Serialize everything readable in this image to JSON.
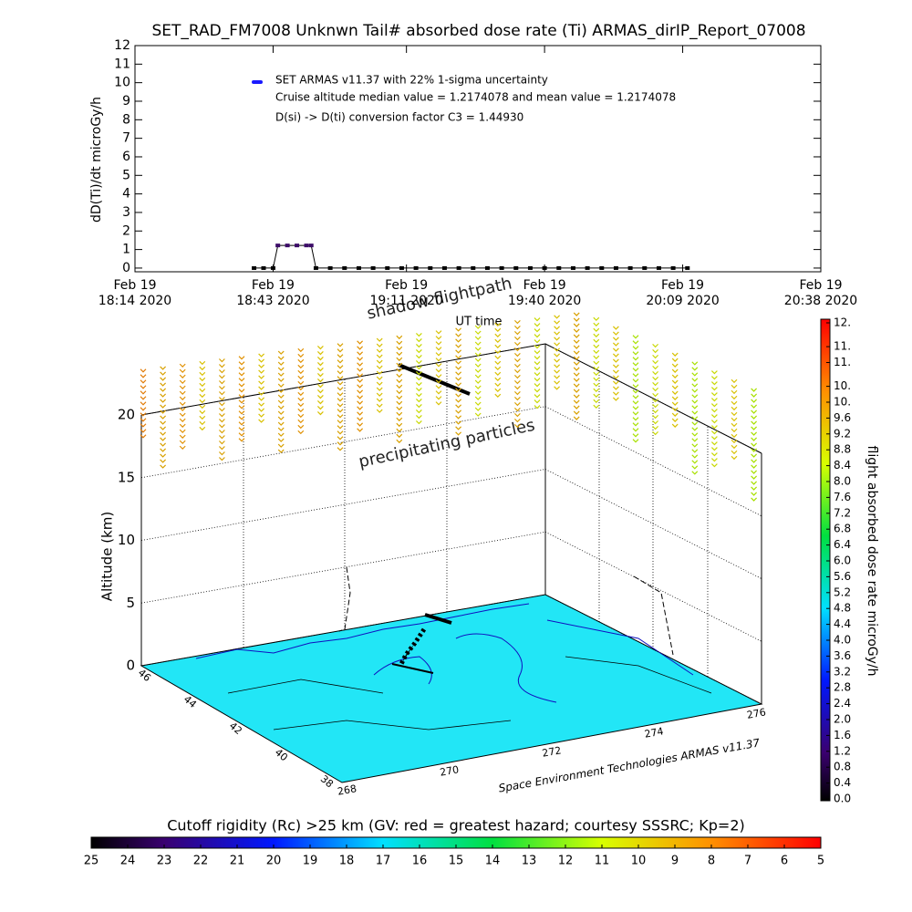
{
  "chart_data": [
    {
      "type": "line",
      "title": "SET_RAD_FM7008  Unknwn Tail#  absorbed dose rate (Ti) ARMAS_dirIP_Report_07008",
      "ylabel": "dD(Ti)/dt microGy/h",
      "xlabel": "UT time",
      "annotations": [
        "Cruise altitude median value = 1.2174078 and mean value = 1.2174078",
        "D(si) -> D(ti) conversion factor C3 = 1.44930"
      ],
      "xlim": [
        "2020-02-19T18:14",
        "2020-02-19T20:38"
      ],
      "xticks": [
        {
          "value": "2020-02-19T18:14",
          "label": [
            "Feb 19",
            "18:14 2020"
          ]
        },
        {
          "value": "2020-02-19T18:43",
          "label": [
            "Feb 19",
            "18:43 2020"
          ]
        },
        {
          "value": "2020-02-19T19:11",
          "label": [
            "Feb 19",
            "19:11 2020"
          ]
        },
        {
          "value": "2020-02-19T19:40",
          "label": [
            "Feb 19",
            "19:40 2020"
          ]
        },
        {
          "value": "2020-02-19T20:09",
          "label": [
            "Feb 19",
            "20:09 2020"
          ]
        },
        {
          "value": "2020-02-19T20:38",
          "label": [
            "Feb 19",
            "20:38 2020"
          ]
        }
      ],
      "ylim": [
        -0.2,
        12
      ],
      "yticks": [
        0,
        1,
        2,
        3,
        4,
        5,
        6,
        7,
        8,
        9,
        10,
        11,
        12
      ],
      "x": [
        "2020-02-19T18:39",
        "2020-02-19T18:41",
        "2020-02-19T18:43",
        "2020-02-19T18:44",
        "2020-02-19T18:46",
        "2020-02-19T18:48",
        "2020-02-19T18:50",
        "2020-02-19T18:51",
        "2020-02-19T18:52",
        "2020-02-19T18:55",
        "2020-02-19T18:58",
        "2020-02-19T19:01",
        "2020-02-19T19:04",
        "2020-02-19T19:07",
        "2020-02-19T19:10",
        "2020-02-19T19:13",
        "2020-02-19T19:16",
        "2020-02-19T19:19",
        "2020-02-19T19:22",
        "2020-02-19T19:25",
        "2020-02-19T19:28",
        "2020-02-19T19:31",
        "2020-02-19T19:34",
        "2020-02-19T19:37",
        "2020-02-19T19:40",
        "2020-02-19T19:43",
        "2020-02-19T19:46",
        "2020-02-19T19:49",
        "2020-02-19T19:52",
        "2020-02-19T19:55",
        "2020-02-19T19:58",
        "2020-02-19T20:01",
        "2020-02-19T20:04",
        "2020-02-19T20:07",
        "2020-02-19T20:10"
      ],
      "series": [
        {
          "name": "SET ARMAS v11.37 with 22% 1-sigma uncertainty",
          "color": "#1a1aff",
          "line_color": "#000000",
          "values": [
            0,
            0,
            0,
            1.22,
            1.22,
            1.22,
            1.22,
            1.22,
            0,
            0,
            0,
            0,
            0,
            0,
            0,
            0,
            0,
            0,
            0,
            0,
            0,
            0,
            0,
            0,
            0,
            0,
            0,
            0,
            0,
            0,
            0,
            0,
            0,
            0,
            0
          ]
        }
      ]
    },
    {
      "type": "surface3d",
      "annotations": [
        "shadow flightpath",
        "precipitating particles"
      ],
      "zlabel": "Altitude (km)",
      "zlim": [
        0,
        20
      ],
      "zticks": [
        0,
        5,
        10,
        15,
        20
      ],
      "lat_ticks": [
        46,
        44,
        42,
        40,
        38
      ],
      "lon_ticks": [
        268,
        270,
        272,
        274,
        276
      ],
      "credit": "Space Environment Technologies ARMAS v11.37"
    },
    {
      "type": "colorbar",
      "label": "flight absorbed dose rate microGy/h",
      "lim": [
        0,
        12
      ],
      "ticks": [
        {
          "value": 0,
          "label": "0.0"
        },
        0.4,
        0.8,
        1.2,
        1.6,
        {
          "value": 2,
          "label": "2.0"
        },
        2.4,
        2.8,
        3.2,
        3.6,
        {
          "value": 4,
          "label": "4.0"
        },
        4.4,
        4.8,
        5.2,
        5.6,
        {
          "value": 6,
          "label": "6.0"
        },
        6.4,
        6.8,
        7.2,
        7.6,
        {
          "value": 8,
          "label": "8.0"
        },
        8.4,
        8.8,
        9.2,
        9.6,
        {
          "value": 10,
          "label": "10."
        },
        {
          "value": 10.4,
          "label": "10."
        },
        {
          "value": 11,
          "label": "11."
        },
        {
          "value": 11.4,
          "label": "11."
        },
        {
          "value": 12,
          "label": "12."
        }
      ]
    },
    {
      "type": "colorbar",
      "label": "Cutoff rigidity (Rc) >25 km (GV: red = greatest hazard; courtesy SSSRC; Kp=2)",
      "lim": [
        25,
        5
      ],
      "ticks": [
        25,
        24,
        23,
        22,
        21,
        20,
        19,
        18,
        17,
        16,
        15,
        14,
        13,
        12,
        11,
        10,
        9,
        8,
        7,
        6,
        5
      ]
    }
  ]
}
